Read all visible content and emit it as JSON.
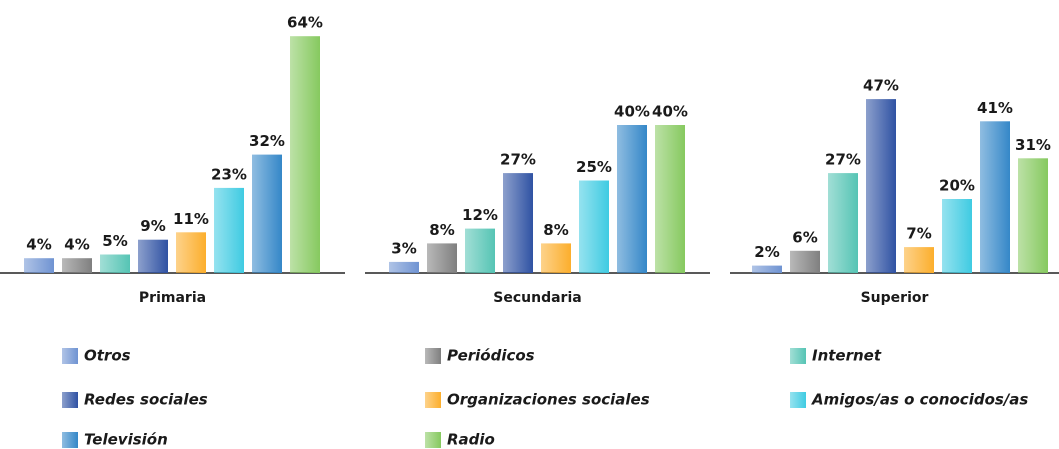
{
  "chart_data": {
    "type": "bar",
    "categories": [
      "Primaria",
      "Secundaria",
      "Superior"
    ],
    "series": [
      {
        "name": "Otros",
        "color": "#6f93d2",
        "values": [
          4,
          3,
          2
        ],
        "value_labels": [
          "4%",
          "3%",
          "2%"
        ]
      },
      {
        "name": "Periódicos",
        "color": "#7f7f7f",
        "values": [
          4,
          8,
          6
        ],
        "value_labels": [
          "4%",
          "8%",
          "6%"
        ]
      },
      {
        "name": "Internet",
        "color": "#55c4b4",
        "values": [
          5,
          12,
          27
        ],
        "value_labels": [
          "5%",
          "12%",
          "27%"
        ]
      },
      {
        "name": "Redes sociales",
        "color": "#2f52a3",
        "values": [
          9,
          27,
          47
        ],
        "value_labels": [
          "9%",
          "27%",
          "47%"
        ]
      },
      {
        "name": "Organizaciones sociales",
        "color": "#fcae2c",
        "values": [
          11,
          8,
          7
        ],
        "value_labels": [
          "11%",
          "8%",
          "7%"
        ]
      },
      {
        "name": "Amigos/as o conocidos/as",
        "color": "#3fcbe2",
        "values": [
          23,
          25,
          20
        ],
        "value_labels": [
          "23%",
          "25%",
          "20%"
        ]
      },
      {
        "name": "Televisión",
        "color": "#3487c8",
        "values": [
          32,
          40,
          41
        ],
        "value_labels": [
          "32%",
          "40%",
          "41%"
        ]
      },
      {
        "name": "Radio",
        "color": "#86c95f",
        "values": [
          64,
          40,
          31
        ],
        "value_labels": [
          "64%",
          "40%",
          "31%"
        ]
      }
    ]
  }
}
